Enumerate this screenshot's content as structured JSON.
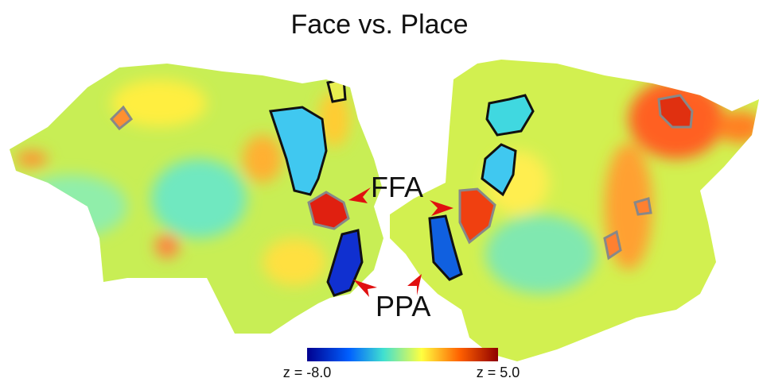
{
  "title": "Face vs. Place",
  "labels": {
    "ffa": "FFA",
    "ppa": "PPA"
  },
  "colorbar": {
    "min_label": "z = -8.0",
    "max_label": "z = 5.0"
  }
}
